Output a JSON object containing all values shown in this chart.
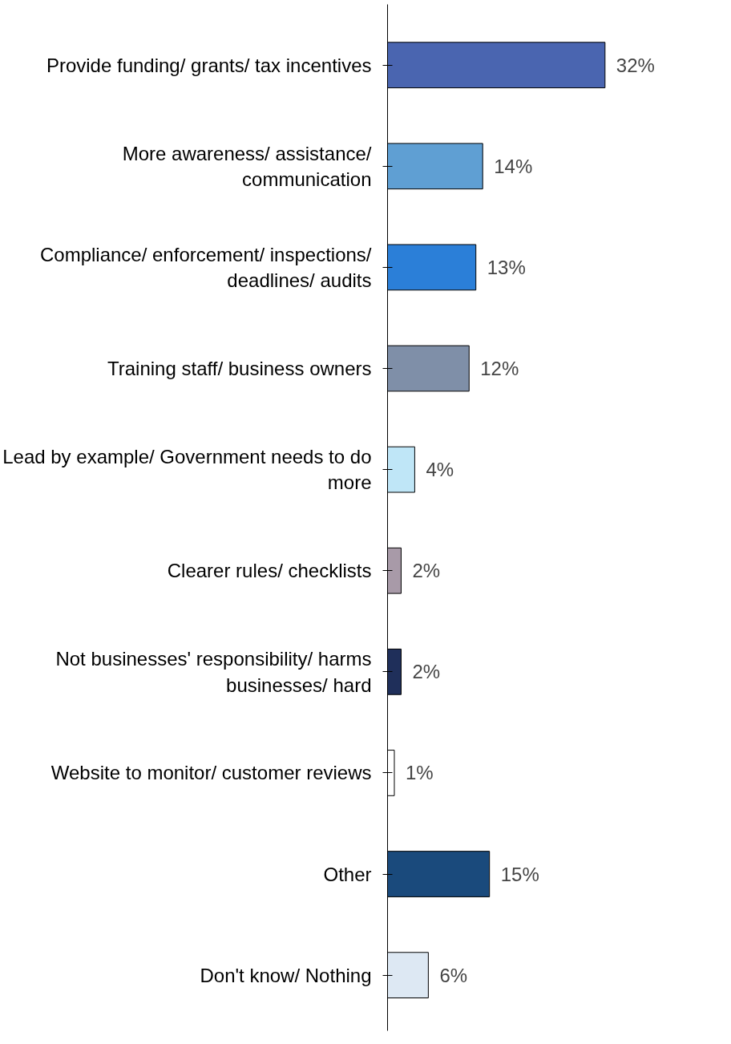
{
  "chart_data": {
    "type": "bar",
    "orientation": "horizontal",
    "categories": [
      "Provide funding/ grants/ tax incentives",
      "More awareness/ assistance/ communication",
      "Compliance/ enforcement/ inspections/ deadlines/ audits",
      "Training staff/ business owners",
      "Lead by example/ Government needs to do more",
      "Clearer rules/ checklists",
      "Not businesses' responsibility/ harms businesses/ hard",
      "Website to monitor/ customer reviews",
      "Other",
      "Don't know/ Nothing"
    ],
    "values": [
      32,
      14,
      13,
      12,
      4,
      2,
      2,
      1,
      15,
      6
    ],
    "value_labels": [
      "32%",
      "14%",
      "13%",
      "12%",
      "4%",
      "2%",
      "2%",
      "1%",
      "15%",
      "6%"
    ],
    "colors": [
      "#4a65b0",
      "#5f9fd3",
      "#2b7fd8",
      "#7f8fa8",
      "#bfe6f7",
      "#a89aa8",
      "#1f2f5a",
      "#ffffff",
      "#1a4a7c",
      "#dde8f3"
    ],
    "grid": false
  }
}
